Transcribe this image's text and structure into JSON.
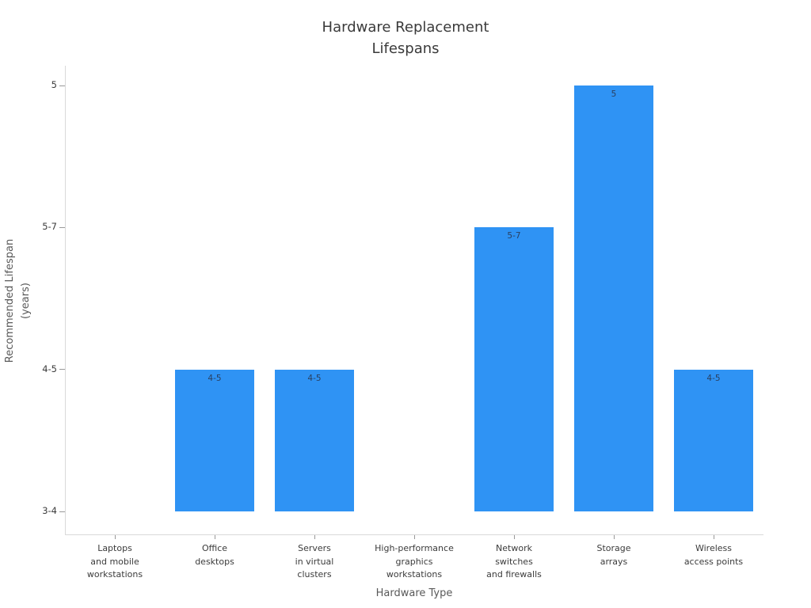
{
  "chart_data": {
    "type": "bar",
    "title": "Hardware Replacement\nLifespans",
    "xlabel": "Hardware Type",
    "ylabel": "Recommended Lifespan\n(years)",
    "categories": [
      "Laptops and mobile workstations",
      "Office desktops",
      "Servers in virtual clusters",
      "High-performance graphics workstations",
      "Network switches and firewalls",
      "Storage arrays",
      "Wireless access points"
    ],
    "category_tick_labels": [
      "Laptops\nand mobile\nworkstations",
      "Office\ndesktops",
      "Servers\nin virtual\nclusters",
      "High-performance\ngraphics\nworkstations",
      "Network\nswitches\nand firewalls",
      "Storage\narrays",
      "Wireless\naccess points"
    ],
    "values": [
      "3-4",
      "4-5",
      "4-5",
      "3-4",
      "5-7",
      "5",
      "4-5"
    ],
    "bar_value_labels": [
      "",
      "4-5",
      "4-5",
      "",
      "5-7",
      "5",
      "4-5"
    ],
    "y_tick_labels": [
      "3-4",
      "4-5",
      "5-7",
      "5"
    ],
    "baseline_level": "3-4",
    "legend": "none",
    "grid": "off",
    "colors": {
      "bar": "#2f93f4",
      "bar_label": "#2a3f5f",
      "axis_line": "#d9d9d9",
      "tick_mark": "#999999",
      "tick_label": "#3b3b3b",
      "axis_title": "#595959",
      "title": "#3a3a3a",
      "background": "#ffffff"
    }
  }
}
